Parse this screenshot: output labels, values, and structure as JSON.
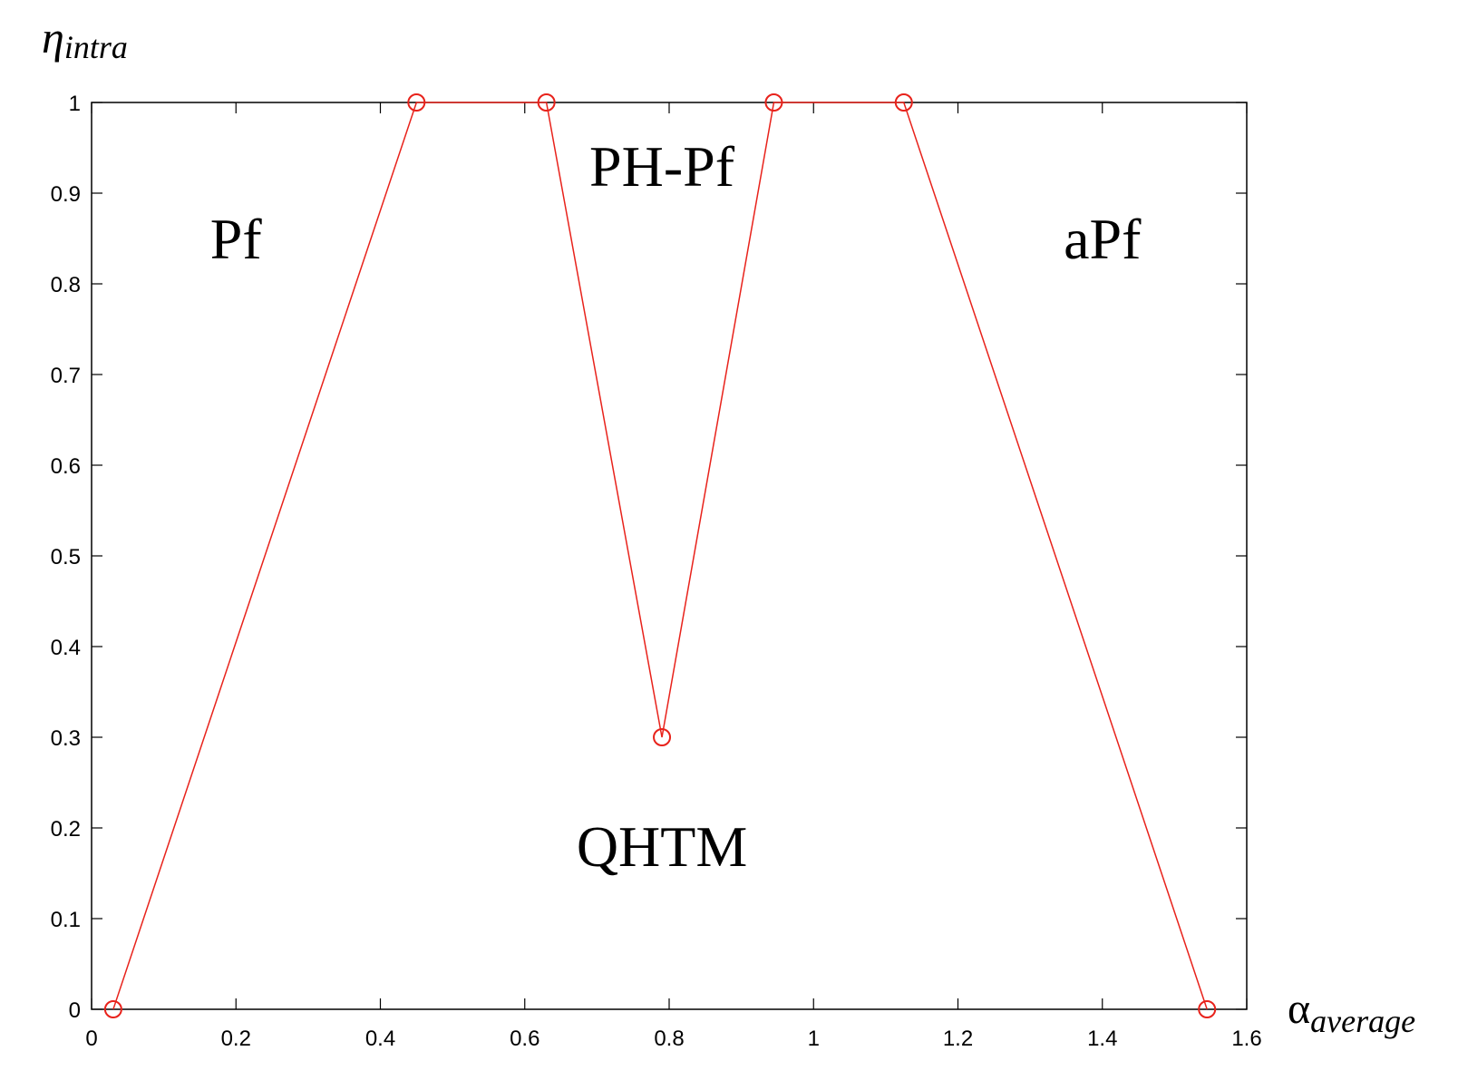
{
  "chart_data": {
    "type": "line",
    "xlabel": {
      "main": "α",
      "sub": "average"
    },
    "ylabel": {
      "main": "η",
      "sub": "intra"
    },
    "xlim": [
      0,
      1.6
    ],
    "ylim": [
      0,
      1
    ],
    "x_ticks": [
      "0",
      "0.2",
      "0.4",
      "0.6",
      "0.8",
      "1",
      "1.2",
      "1.4",
      "1.6"
    ],
    "y_ticks": [
      "0",
      "0.1",
      "0.2",
      "0.3",
      "0.4",
      "0.5",
      "0.6",
      "0.7",
      "0.8",
      "0.9",
      "1"
    ],
    "grid": false,
    "series": [
      {
        "color": "#e8221b",
        "marker": "open-circle",
        "x": [
          0.03,
          0.45,
          0.63,
          0.79,
          0.945,
          1.125,
          1.545
        ],
        "y": [
          0,
          1,
          1,
          0.3,
          1,
          1,
          0
        ]
      }
    ],
    "annotations": [
      {
        "text": "Pf",
        "x": 0.2,
        "y": 0.85
      },
      {
        "text": "PH-Pf",
        "x": 0.79,
        "y": 0.93
      },
      {
        "text": "aPf",
        "x": 1.4,
        "y": 0.85
      },
      {
        "text": "QHTM",
        "x": 0.79,
        "y": 0.18
      }
    ]
  }
}
